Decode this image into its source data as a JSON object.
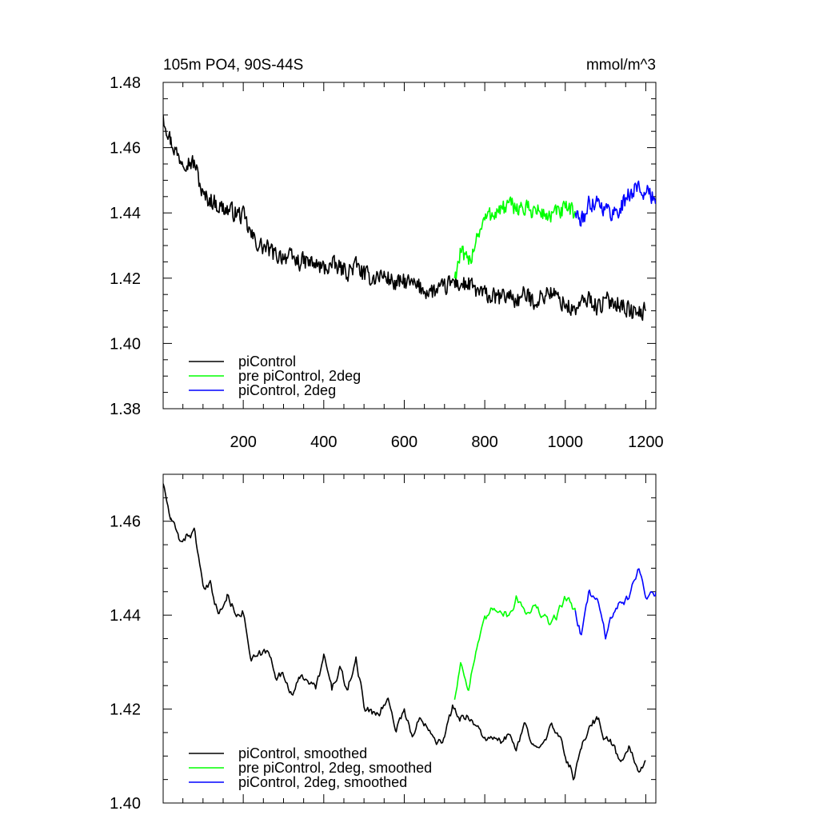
{
  "chart_data": [
    {
      "type": "line",
      "title": "105m PO4, 90S-44S",
      "units": "mmol/m^3",
      "xlabel": "",
      "ylabel": "",
      "xlim": [
        1,
        1225
      ],
      "ylim": [
        1.38,
        1.48
      ],
      "xticks": [
        200,
        400,
        600,
        800,
        1000,
        1200
      ],
      "yticks": [
        1.38,
        1.4,
        1.42,
        1.44,
        1.46,
        1.48
      ],
      "ytick_labels": [
        "1.38",
        "1.40",
        "1.42",
        "1.44",
        "1.46",
        "1.48"
      ],
      "legend": "bottom-left",
      "grid": false,
      "series": [
        {
          "name": "piControl",
          "color": "#000000",
          "x": [
            1,
            20,
            40,
            60,
            80,
            100,
            120,
            140,
            160,
            180,
            200,
            220,
            240,
            260,
            280,
            300,
            320,
            340,
            360,
            380,
            400,
            420,
            440,
            460,
            480,
            500,
            520,
            540,
            560,
            580,
            600,
            620,
            640,
            660,
            680,
            700,
            720,
            740,
            760,
            780,
            800,
            820,
            840,
            860,
            880,
            900,
            920,
            940,
            960,
            980,
            1000,
            1020,
            1040,
            1060,
            1080,
            1100,
            1120,
            1140,
            1160,
            1180,
            1200
          ],
          "values": [
            1.47,
            1.462,
            1.457,
            1.456,
            1.455,
            1.445,
            1.444,
            1.442,
            1.441,
            1.44,
            1.439,
            1.433,
            1.43,
            1.429,
            1.427,
            1.427,
            1.426,
            1.425,
            1.425,
            1.424,
            1.423,
            1.424,
            1.423,
            1.422,
            1.424,
            1.421,
            1.42,
            1.421,
            1.42,
            1.418,
            1.419,
            1.418,
            1.417,
            1.416,
            1.416,
            1.417,
            1.419,
            1.418,
            1.418,
            1.416,
            1.415,
            1.414,
            1.414,
            1.415,
            1.413,
            1.415,
            1.413,
            1.414,
            1.416,
            1.414,
            1.412,
            1.41,
            1.412,
            1.414,
            1.411,
            1.413,
            1.413,
            1.412,
            1.41,
            1.409,
            1.41
          ]
        },
        {
          "name": "pre piControl, 2deg",
          "color": "#00ff00",
          "x": [
            725,
            740,
            760,
            780,
            800,
            820,
            840,
            860,
            880,
            900,
            920,
            940,
            960,
            980,
            1000,
            1025
          ],
          "values": [
            1.42,
            1.428,
            1.424,
            1.433,
            1.438,
            1.44,
            1.441,
            1.442,
            1.442,
            1.441,
            1.441,
            1.44,
            1.439,
            1.44,
            1.441,
            1.44
          ]
        },
        {
          "name": "piControl, 2deg",
          "color": "#0000ff",
          "x": [
            1025,
            1040,
            1060,
            1080,
            1100,
            1120,
            1140,
            1160,
            1180,
            1200,
            1225
          ],
          "values": [
            1.44,
            1.437,
            1.443,
            1.444,
            1.441,
            1.44,
            1.442,
            1.446,
            1.448,
            1.446,
            1.444
          ]
        }
      ]
    },
    {
      "type": "line",
      "title": "",
      "xlabel": "",
      "ylabel": "",
      "xlim": [
        1,
        1225
      ],
      "ylim": [
        1.4,
        1.47
      ],
      "xticks": [
        200,
        400,
        600,
        800,
        1000,
        1200
      ],
      "yticks": [
        1.4,
        1.42,
        1.44,
        1.46
      ],
      "ytick_labels": [
        "1.40",
        "1.42",
        "1.44",
        "1.46"
      ],
      "legend": "bottom-left",
      "grid": false,
      "series": [
        {
          "name": "piControl, smoothed",
          "color": "#000000",
          "x": [
            1,
            20,
            40,
            60,
            80,
            100,
            120,
            140,
            160,
            180,
            200,
            220,
            240,
            260,
            280,
            300,
            320,
            340,
            360,
            380,
            400,
            420,
            440,
            460,
            480,
            500,
            520,
            540,
            560,
            580,
            600,
            620,
            640,
            660,
            680,
            700,
            720,
            740,
            760,
            780,
            800,
            820,
            840,
            860,
            880,
            900,
            920,
            940,
            960,
            980,
            1000,
            1020,
            1040,
            1060,
            1080,
            1100,
            1120,
            1140,
            1160,
            1180,
            1200
          ],
          "values": [
            1.468,
            1.46,
            1.456,
            1.457,
            1.458,
            1.445,
            1.446,
            1.44,
            1.444,
            1.441,
            1.441,
            1.43,
            1.431,
            1.432,
            1.428,
            1.427,
            1.424,
            1.426,
            1.427,
            1.424,
            1.431,
            1.424,
            1.429,
            1.423,
            1.431,
            1.421,
            1.419,
            1.42,
            1.422,
            1.416,
            1.42,
            1.414,
            1.418,
            1.417,
            1.414,
            1.414,
            1.42,
            1.418,
            1.419,
            1.416,
            1.414,
            1.413,
            1.413,
            1.414,
            1.412,
            1.416,
            1.412,
            1.414,
            1.416,
            1.415,
            1.41,
            1.406,
            1.411,
            1.417,
            1.418,
            1.414,
            1.412,
            1.408,
            1.412,
            1.407,
            1.409
          ]
        },
        {
          "name": "pre piControl, 2deg, smoothed",
          "color": "#00ff00",
          "x": [
            725,
            740,
            760,
            780,
            800,
            820,
            840,
            860,
            880,
            900,
            920,
            940,
            960,
            980,
            1000,
            1025
          ],
          "values": [
            1.422,
            1.43,
            1.425,
            1.433,
            1.438,
            1.441,
            1.442,
            1.44,
            1.444,
            1.441,
            1.442,
            1.44,
            1.438,
            1.44,
            1.444,
            1.441
          ]
        },
        {
          "name": "piControl, 2deg, smoothed",
          "color": "#0000ff",
          "x": [
            1025,
            1040,
            1060,
            1080,
            1100,
            1120,
            1140,
            1160,
            1180,
            1200,
            1225
          ],
          "values": [
            1.441,
            1.436,
            1.445,
            1.443,
            1.436,
            1.441,
            1.443,
            1.444,
            1.45,
            1.445,
            1.445
          ]
        }
      ]
    }
  ]
}
